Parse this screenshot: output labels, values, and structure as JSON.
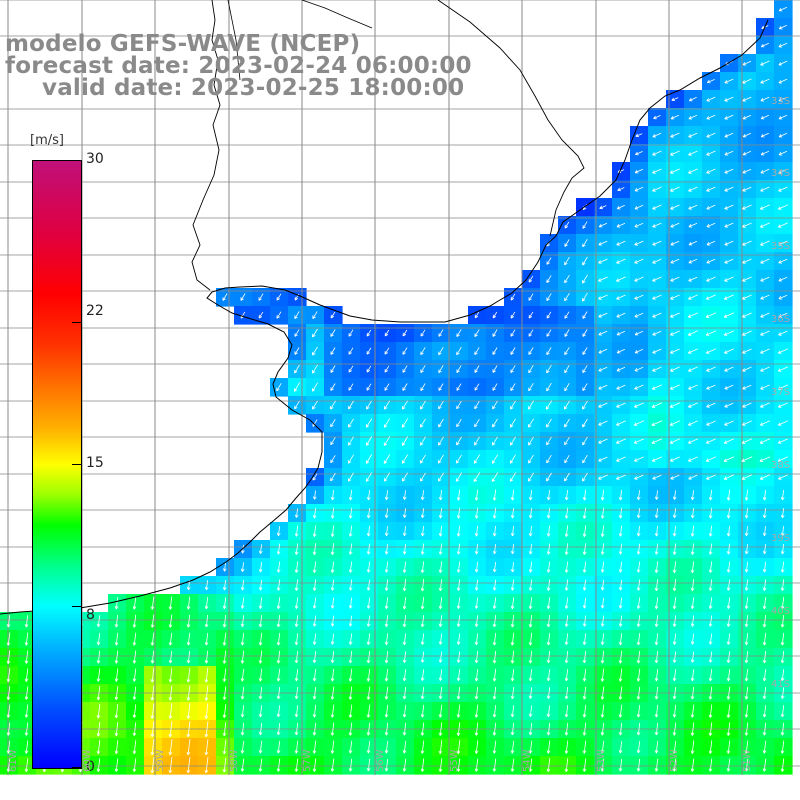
{
  "title": {
    "line1": "modelo GEFS-WAVE (NCEP)",
    "line2": "forecast date: 2023-02-24 06:00:00",
    "line3": "valid date: 2023-02-25 18:00:00"
  },
  "colorbar": {
    "unit": "[m/s]",
    "min": 0,
    "max": 30,
    "ticks": [
      {
        "value": 30,
        "label": "30"
      },
      {
        "value": 22,
        "label": "22"
      },
      {
        "value": 15,
        "label": "15"
      },
      {
        "value": 8,
        "label": "8"
      },
      {
        "value": 0,
        "label": "0"
      }
    ],
    "color_stops": [
      "#0000ff",
      "#00b4ff",
      "#00ffff",
      "#00ff00",
      "#ffff00",
      "#ff7000",
      "#ff0000",
      "#c0107a"
    ]
  },
  "map": {
    "variable": "wind speed and direction",
    "lat_labels": [
      "33S",
      "34S",
      "35S",
      "36S",
      "37S",
      "38S",
      "39S",
      "40S",
      "41S"
    ],
    "lon_labels": [
      "61W",
      "60W",
      "59W",
      "58W",
      "57W",
      "56W",
      "55W",
      "54W",
      "53W",
      "52W",
      "51W",
      "50W"
    ],
    "colors": {
      "land": "#ffffff",
      "coastline": "#000000",
      "grid": "#888888",
      "wind_vector": "#ffffff",
      "deep_blue": "#0b2fe8",
      "medium_blue": "#1c7cff",
      "cyan": "#00d8ff",
      "green": "#19ef3f",
      "yellow": "#f7f700"
    }
  }
}
